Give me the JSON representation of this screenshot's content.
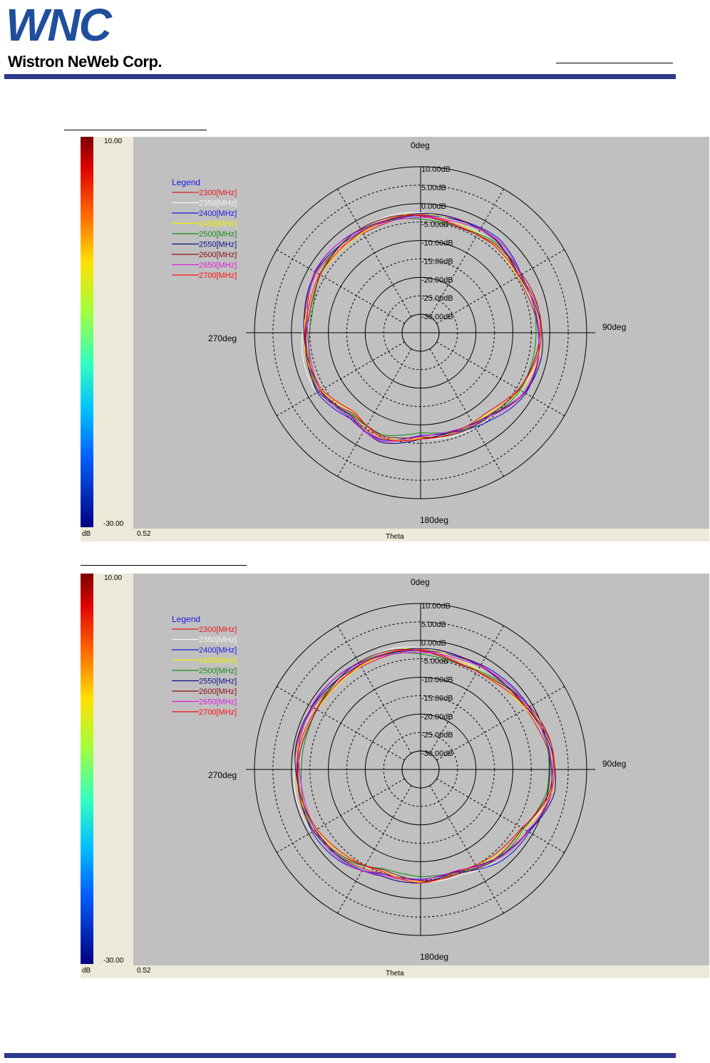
{
  "header": {
    "logo_wnc": "WNC",
    "logo_sub": "Wistron NeWeb Corp.",
    "brand_blue": "#1f4e9c",
    "bar_color": "#2e3a8c"
  },
  "chart_data": [
    {
      "type": "polar",
      "angle_labels": {
        "top": "0deg",
        "right": "90deg",
        "bottom": "180deg",
        "left": "270deg"
      },
      "ring_labels": [
        "10.00dB",
        "5.00dB",
        "0.00dB",
        "-5.00dB",
        "-10.00dB",
        "-15.00dB",
        "-20.00dB",
        "-25.00dB",
        "-30.00dB"
      ],
      "rlim": [
        -35,
        10
      ],
      "colorbar": {
        "max": "10.00",
        "min": "-30.00",
        "unit": "dB"
      },
      "min_value_label": "0.52",
      "xlabel": "Theta",
      "legend_title": "Legend",
      "legend_position": "top-left",
      "series": [
        {
          "name": "2300[MHz]",
          "color": "#e02020",
          "bias": 0.0
        },
        {
          "name": "2350[MHz]",
          "color": "#f4f4f4",
          "bias": 0.2
        },
        {
          "name": "2400[MHz]",
          "color": "#1a1ae0",
          "bias": 0.4
        },
        {
          "name": "2450[MHz]",
          "color": "#f0f000",
          "bias": -0.3
        },
        {
          "name": "2500[MHz]",
          "color": "#1a8c1a",
          "bias": -0.5
        },
        {
          "name": "2550[MHz]",
          "color": "#101088",
          "bias": 0.3
        },
        {
          "name": "2600[MHz]",
          "color": "#8c1010",
          "bias": -0.2
        },
        {
          "name": "2650[MHz]",
          "color": "#e020e0",
          "bias": 0.1
        },
        {
          "name": "2700[MHz]",
          "color": "#ff1010",
          "bias": -0.4
        }
      ],
      "pattern_deg": [
        0,
        20,
        40,
        60,
        80,
        100,
        120,
        140,
        160,
        180,
        200,
        220,
        240,
        260,
        280,
        300,
        320,
        340
      ],
      "pattern_db": [
        -3.5,
        -3.5,
        -2.5,
        -3.5,
        -3,
        -3,
        -3.5,
        -5.5,
        -6,
        -6.5,
        -4.5,
        -6.5,
        -3.5,
        -3.5,
        -3.5,
        -2.5,
        -3,
        -3.5
      ]
    },
    {
      "type": "polar",
      "angle_labels": {
        "top": "0deg",
        "right": "90deg",
        "bottom": "180deg",
        "left": "270deg"
      },
      "ring_labels": [
        "10.00dB",
        "5.00dB",
        "0.00dB",
        "-5.00dB",
        "-10.00dB",
        "-15.00dB",
        "-20.00dB",
        "-25.00dB",
        "-30.00dB"
      ],
      "rlim": [
        -35,
        10
      ],
      "colorbar": {
        "max": "10.00",
        "min": "-30.00",
        "unit": "dB"
      },
      "min_value_label": "0.52",
      "xlabel": "Theta",
      "legend_title": "Legend",
      "legend_position": "top-left",
      "series": [
        {
          "name": "2300[MHz]",
          "color": "#e02020",
          "bias": 0.0
        },
        {
          "name": "2350[MHz]",
          "color": "#f4f4f4",
          "bias": 0.2
        },
        {
          "name": "2400[MHz]",
          "color": "#1a1ae0",
          "bias": 0.4
        },
        {
          "name": "2450[MHz]",
          "color": "#f0f000",
          "bias": -0.3
        },
        {
          "name": "2500[MHz]",
          "color": "#1a8c1a",
          "bias": -0.5
        },
        {
          "name": "2550[MHz]",
          "color": "#101088",
          "bias": 0.3
        },
        {
          "name": "2600[MHz]",
          "color": "#8c1010",
          "bias": -0.2
        },
        {
          "name": "2650[MHz]",
          "color": "#e020e0",
          "bias": 0.1
        },
        {
          "name": "2700[MHz]",
          "color": "#ff1010",
          "bias": -0.4
        }
      ],
      "pattern_deg": [
        0,
        20,
        40,
        60,
        80,
        100,
        120,
        140,
        160,
        180,
        200,
        220,
        240,
        260,
        280,
        300,
        320,
        340
      ],
      "pattern_db": [
        -3,
        -3.5,
        -2.5,
        -1,
        0.5,
        0.5,
        -2.5,
        -3,
        -5,
        -4.5,
        -5.5,
        -3.5,
        -2,
        -1.5,
        -1,
        -1.5,
        -2,
        -2.5
      ]
    }
  ]
}
